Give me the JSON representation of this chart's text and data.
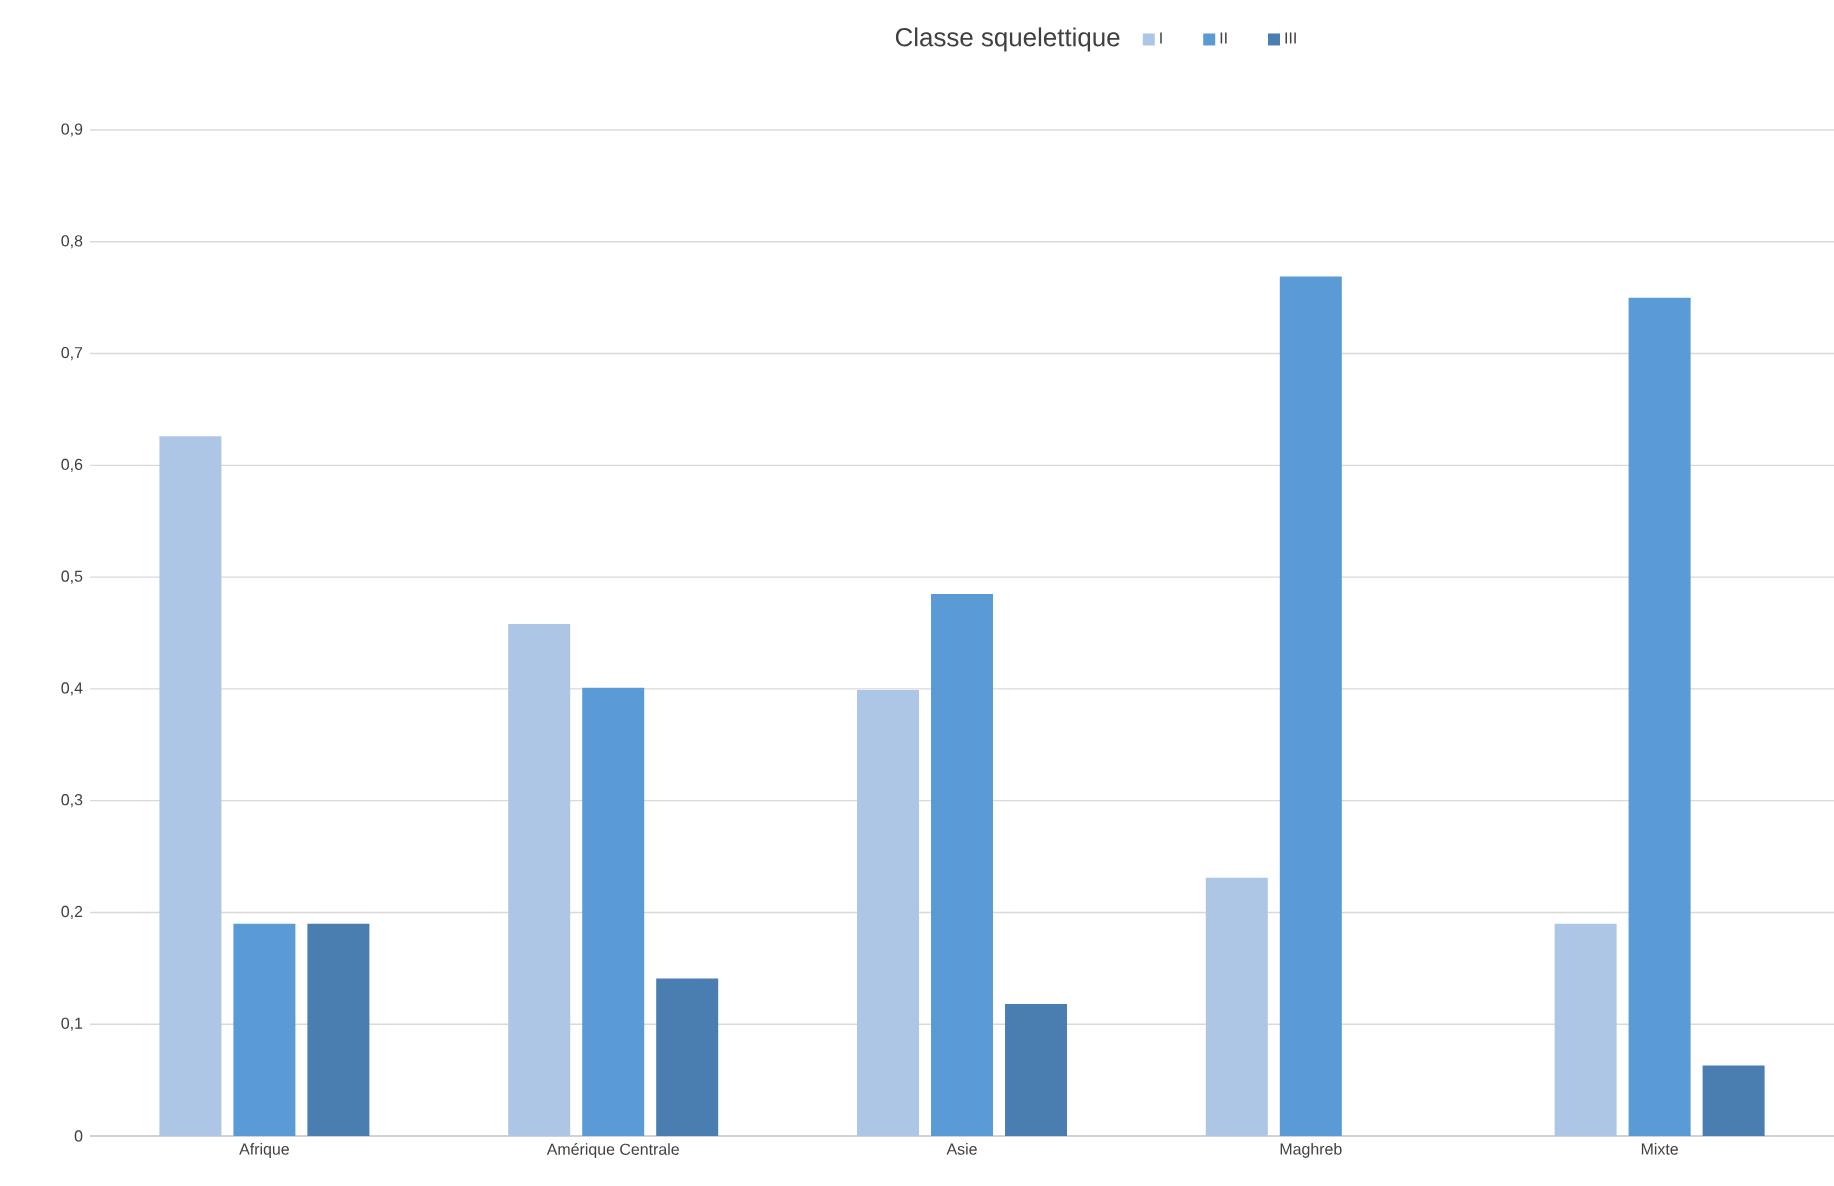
{
  "chart_data": {
    "type": "bar",
    "legend_title": "Classe squelettique",
    "categories": [
      "Afrique",
      "Amérique Centrale",
      "Asie",
      "Maghreb",
      "Mixte"
    ],
    "series": [
      {
        "name": "I",
        "color": "#adc6e5",
        "values": [
          0.626,
          0.458,
          0.399,
          0.231,
          0.19
        ]
      },
      {
        "name": "II",
        "color": "#5b9bd5",
        "values": [
          0.19,
          0.401,
          0.485,
          0.769,
          0.75
        ]
      },
      {
        "name": "III",
        "color": "#4a7eb0",
        "values": [
          0.19,
          0.141,
          0.118,
          null,
          0.063
        ]
      }
    ],
    "ylim": [
      0,
      0.9
    ],
    "yticks": [
      0,
      {
        "value": 0.1,
        "label": "0,1"
      },
      {
        "value": 0.2,
        "label": "0,2"
      },
      {
        "value": 0.3,
        "label": "0,3"
      },
      {
        "value": 0.4,
        "label": "0,4"
      },
      {
        "value": 0.5,
        "label": "0,5"
      },
      {
        "value": 0.6,
        "label": "0,6"
      },
      {
        "value": 0.7,
        "label": "0,7"
      },
      {
        "value": 0.8,
        "label": "0,8"
      },
      {
        "value": 0.9,
        "label": "0,9"
      }
    ],
    "grid": "y",
    "legend": "top"
  }
}
